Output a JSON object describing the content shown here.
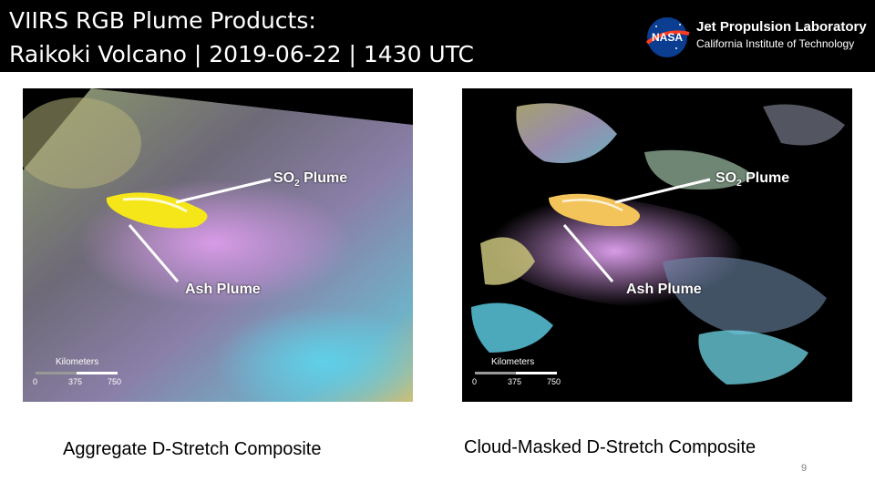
{
  "header": {
    "title_line1": "VIIRS RGB Plume Products:",
    "title_line2": "Raikoki Volcano | 2019-06-22 | 1430 UTC",
    "logo_nasa_text": "NASA",
    "logo_org": "Jet Propulsion Laboratory",
    "logo_sub": "California Institute of Technology"
  },
  "panels": [
    {
      "so2_label": "SO",
      "so2_sub": "2",
      "so2_suffix": " Plume",
      "ash_label": "Ash Plume",
      "scale_title": "Kilometers",
      "scale_ticks": [
        "0",
        "375",
        "750"
      ],
      "caption": "Aggregate D-Stretch Composite"
    },
    {
      "so2_label": "SO",
      "so2_sub": "2",
      "so2_suffix": " Plume",
      "ash_label": "Ash Plume",
      "scale_title": "Kilometers",
      "scale_ticks": [
        "0",
        "375",
        "750"
      ],
      "caption": "Cloud-Masked D-Stretch Composite"
    }
  ],
  "page_number": "9",
  "colors": {
    "header_bg": "#000000",
    "so2_plume": "#f5e61a",
    "ash_plume": "#cc8fe0"
  }
}
